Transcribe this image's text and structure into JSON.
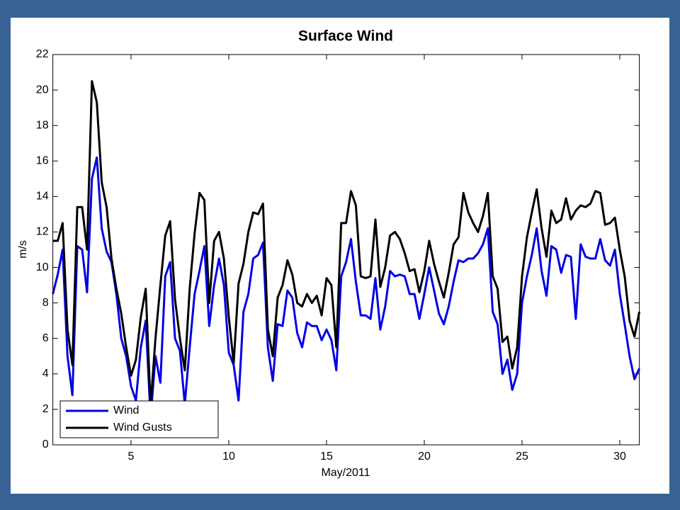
{
  "chart_data": {
    "type": "line",
    "title": "Surface Wind",
    "xlabel": "May/2011",
    "ylabel": "m/s",
    "x": [
      1,
      1.25,
      1.5,
      1.75,
      2,
      2.25,
      2.5,
      2.75,
      3,
      3.25,
      3.5,
      3.75,
      4,
      4.25,
      4.5,
      4.75,
      5,
      5.25,
      5.5,
      5.75,
      6,
      6.25,
      6.5,
      6.75,
      7,
      7.25,
      7.5,
      7.75,
      8,
      8.25,
      8.5,
      8.75,
      9,
      9.25,
      9.5,
      9.75,
      10,
      10.25,
      10.5,
      10.75,
      11,
      11.25,
      11.5,
      11.75,
      12,
      12.25,
      12.5,
      12.75,
      13,
      13.25,
      13.5,
      13.75,
      14,
      14.25,
      14.5,
      14.75,
      15,
      15.25,
      15.5,
      15.75,
      16,
      16.25,
      16.5,
      16.75,
      17,
      17.25,
      17.5,
      17.75,
      18,
      18.25,
      18.5,
      18.75,
      19,
      19.25,
      19.5,
      19.75,
      20,
      20.25,
      20.5,
      20.75,
      21,
      21.25,
      21.5,
      21.75,
      22,
      22.25,
      22.5,
      22.75,
      23,
      23.25,
      23.5,
      23.75,
      24,
      24.25,
      24.5,
      24.75,
      25,
      25.25,
      25.5,
      25.75,
      26,
      26.25,
      26.5,
      26.75,
      27,
      27.25,
      27.5,
      27.75,
      28,
      28.25,
      28.5,
      28.75,
      29,
      29.25,
      29.5,
      29.75,
      30,
      30.25,
      30.5,
      30.75,
      31
    ],
    "series": [
      {
        "name": "Wind",
        "color": "#0000e6",
        "values": [
          8.5,
          9.6,
          11,
          5,
          2.8,
          11.2,
          11,
          8.6,
          15,
          16.2,
          12.2,
          10.9,
          10.3,
          8.5,
          6,
          5,
          3.3,
          2.5,
          5.5,
          7,
          1.5,
          5,
          3.5,
          9.5,
          10.3,
          6,
          5.3,
          2.3,
          5.5,
          8.5,
          9.8,
          11.2,
          6.7,
          9,
          10.5,
          9,
          5.2,
          4.5,
          2.5,
          7.5,
          8.5,
          10.5,
          10.7,
          11.4,
          5.5,
          3.6,
          6.8,
          6.7,
          8.7,
          8.3,
          6.3,
          5.5,
          6.9,
          6.7,
          6.7,
          5.9,
          6.5,
          5.9,
          4.2,
          9.5,
          10.3,
          11.6,
          9.2,
          7.3,
          7.3,
          7.1,
          9.4,
          6.5,
          7.8,
          9.8,
          9.5,
          9.6,
          9.5,
          8.5,
          8.5,
          7.1,
          8.5,
          10,
          8.7,
          7.4,
          6.8,
          7.8,
          9.2,
          10.4,
          10.3,
          10.5,
          10.5,
          10.8,
          11.3,
          12.2,
          7.5,
          6.8,
          4,
          4.8,
          3.1,
          4,
          8,
          9.5,
          10.7,
          12.2,
          9.8,
          8.4,
          11.2,
          11,
          9.7,
          10.7,
          10.6,
          7.1,
          11.3,
          10.6,
          10.5,
          10.5,
          11.6,
          10.4,
          10.1,
          11,
          8.5,
          6.8,
          5,
          3.7,
          4.3
        ]
      },
      {
        "name": "Wind Gusts",
        "color": "#000000",
        "values": [
          11.5,
          11.5,
          12.5,
          6.5,
          4.5,
          13.4,
          13.4,
          11,
          20.5,
          19.3,
          14.8,
          13.4,
          10.5,
          8.8,
          7.4,
          5.5,
          3.9,
          4.8,
          7.2,
          8.8,
          2.2,
          6,
          9,
          11.8,
          12.6,
          8.2,
          6,
          4.2,
          8.8,
          11.9,
          14.2,
          13.8,
          8,
          11.5,
          12,
          10.5,
          7.2,
          4.6,
          9.1,
          10.2,
          12,
          13.1,
          13,
          13.6,
          6.5,
          5,
          8.3,
          9,
          10.4,
          9.6,
          8,
          7.8,
          8.5,
          8,
          8.4,
          7.3,
          9.4,
          9,
          5.5,
          12.5,
          12.5,
          14.3,
          13.5,
          9.5,
          9.4,
          9.5,
          12.7,
          8.9,
          10,
          11.8,
          12,
          11.6,
          10.8,
          9.8,
          9.9,
          8.6,
          9.8,
          11.5,
          10.2,
          9.2,
          8.3,
          9.7,
          11.3,
          11.7,
          14.2,
          13.1,
          12.5,
          12,
          12.9,
          14.2,
          9.5,
          8.8,
          5.8,
          6.1,
          4.3,
          5.5,
          9.5,
          11.7,
          13.1,
          14.4,
          12.2,
          10.6,
          13.2,
          12.5,
          12.7,
          13.9,
          12.7,
          13.2,
          13.5,
          13.4,
          13.6,
          14.3,
          14.2,
          12.4,
          12.5,
          12.8,
          11,
          9.5,
          7,
          6.1,
          7.5
        ]
      }
    ],
    "xlim": [
      1,
      31
    ],
    "xticks": [
      5,
      10,
      15,
      20,
      25,
      30
    ],
    "ylim": [
      0,
      22
    ],
    "yticks": [
      0,
      2,
      4,
      6,
      8,
      10,
      12,
      14,
      16,
      18,
      20,
      22
    ],
    "grid": false,
    "legend": "lower left"
  }
}
